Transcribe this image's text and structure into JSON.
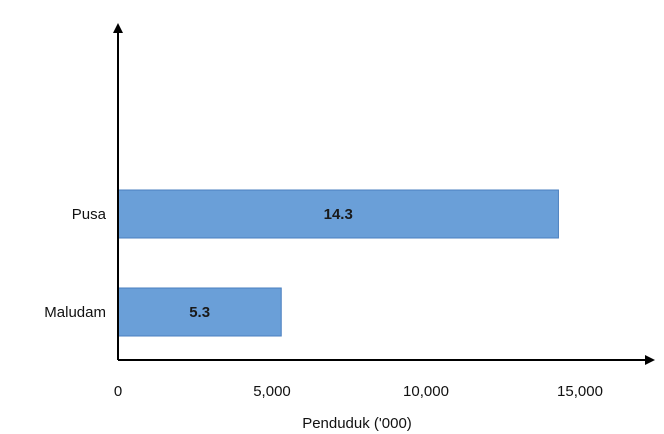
{
  "chart_data": {
    "type": "bar",
    "orientation": "horizontal",
    "categories": [
      "Pusa",
      "Maludam"
    ],
    "values": [
      14300,
      5300
    ],
    "data_labels": [
      "14.3",
      "5.3"
    ],
    "xlabel": "Penduduk ('000)",
    "ylabel": "",
    "xlim": [
      0,
      16000
    ],
    "xticks": [
      0,
      5000,
      10000,
      15000
    ],
    "xtick_labels": [
      "0",
      "5,000",
      "10,000",
      "15,000"
    ],
    "grid": false,
    "bar_color": "#6a9fd8",
    "bar_edge_color": "#4a7fbf",
    "axis_color": "#000000"
  }
}
